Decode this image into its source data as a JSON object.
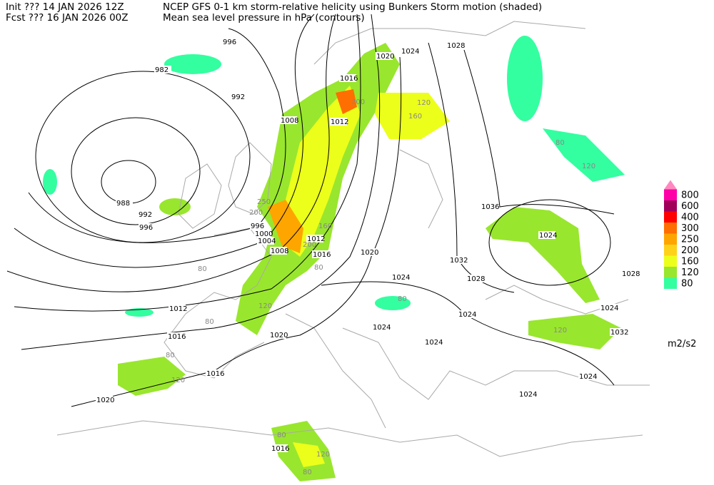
{
  "header": {
    "init": "Init  ??? 14 JAN 2026 12Z",
    "fcst": "Fcst ??? 16 JAN 2026 00Z",
    "title": "NCEP GFS 0-1 km storm-relative helicity using Bunkers Storm motion (shaded)",
    "subtitle": "Mean sea level pressure in hPa (contours)"
  },
  "contour_labels": [
    996,
    982,
    992,
    988,
    992,
    996,
    996,
    1000,
    1004,
    1008,
    1012,
    1016,
    1020,
    1016,
    1012,
    1008,
    1020,
    1024,
    1028,
    1036,
    1024,
    1032,
    1028,
    1024,
    1024,
    1024,
    1024,
    1024,
    1032,
    1028,
    1024,
    1024,
    1012,
    1016,
    1020,
    1016,
    1020,
    1016
  ],
  "shaded_labels": [
    200,
    160,
    120,
    250,
    200,
    200,
    160,
    120,
    80,
    120,
    80,
    80,
    120,
    80,
    120,
    80,
    80,
    120,
    80,
    80
  ],
  "legend": {
    "levels": [
      80,
      120,
      160,
      200,
      250,
      300,
      400,
      600,
      800
    ],
    "colors": [
      "#33ffa0",
      "#99e62e",
      "#ecff1a",
      "#ffd21a",
      "#ffa500",
      "#ff6e00",
      "#ff0000",
      "#a0005a",
      "#ff00a8"
    ],
    "unit": "m2/s2"
  }
}
